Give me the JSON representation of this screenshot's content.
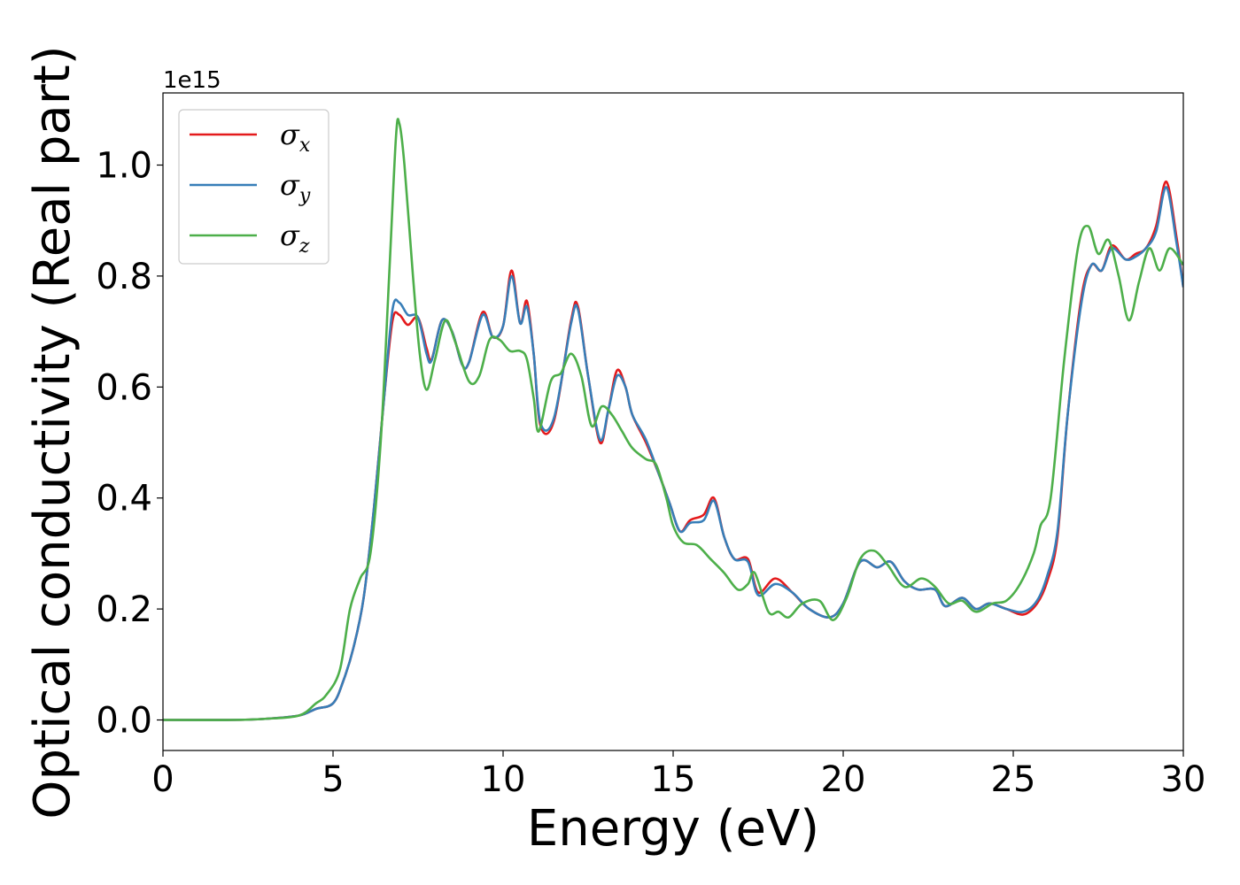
{
  "chart_data": {
    "type": "line",
    "xlabel": "Energy (eV)",
    "ylabel": "Optical conductivity (Real part)",
    "y_offset_text": "1e15",
    "xlim": [
      0,
      30
    ],
    "ylim": [
      -0.055,
      1.13
    ],
    "x_ticks": [
      0,
      5,
      10,
      15,
      20,
      25,
      30
    ],
    "x_tick_labels": [
      "0",
      "5",
      "10",
      "15",
      "20",
      "25",
      "30"
    ],
    "y_ticks": [
      0.0,
      0.2,
      0.4,
      0.6,
      0.8,
      1.0
    ],
    "y_tick_labels": [
      "0.0",
      "0.2",
      "0.4",
      "0.6",
      "0.8",
      "1.0"
    ],
    "grid": false,
    "legend_position": "top-left",
    "series": [
      {
        "name": "σ",
        "subscript": "x",
        "color": "#e41a1c",
        "points": [
          [
            0,
            0.0
          ],
          [
            2,
            0.0
          ],
          [
            3,
            0.002
          ],
          [
            4,
            0.008
          ],
          [
            4.5,
            0.02
          ],
          [
            5,
            0.03
          ],
          [
            5.3,
            0.07
          ],
          [
            5.6,
            0.13
          ],
          [
            5.9,
            0.22
          ],
          [
            6.2,
            0.38
          ],
          [
            6.5,
            0.58
          ],
          [
            6.75,
            0.72
          ],
          [
            6.95,
            0.73
          ],
          [
            7.2,
            0.712
          ],
          [
            7.5,
            0.725
          ],
          [
            7.75,
            0.67
          ],
          [
            7.9,
            0.65
          ],
          [
            8.2,
            0.72
          ],
          [
            8.5,
            0.7
          ],
          [
            8.8,
            0.64
          ],
          [
            9.0,
            0.645
          ],
          [
            9.4,
            0.735
          ],
          [
            9.7,
            0.69
          ],
          [
            10.0,
            0.71
          ],
          [
            10.25,
            0.81
          ],
          [
            10.5,
            0.715
          ],
          [
            10.7,
            0.755
          ],
          [
            10.9,
            0.66
          ],
          [
            11.1,
            0.53
          ],
          [
            11.5,
            0.54
          ],
          [
            12.0,
            0.72
          ],
          [
            12.2,
            0.745
          ],
          [
            12.5,
            0.62
          ],
          [
            12.85,
            0.5
          ],
          [
            13.1,
            0.56
          ],
          [
            13.35,
            0.63
          ],
          [
            13.6,
            0.6
          ],
          [
            13.8,
            0.55
          ],
          [
            14.2,
            0.5
          ],
          [
            14.6,
            0.44
          ],
          [
            14.9,
            0.39
          ],
          [
            15.2,
            0.34
          ],
          [
            15.5,
            0.36
          ],
          [
            15.9,
            0.37
          ],
          [
            16.2,
            0.4
          ],
          [
            16.5,
            0.33
          ],
          [
            16.8,
            0.29
          ],
          [
            17.2,
            0.29
          ],
          [
            17.5,
            0.23
          ],
          [
            18.0,
            0.255
          ],
          [
            18.5,
            0.23
          ],
          [
            19.0,
            0.2
          ],
          [
            19.6,
            0.185
          ],
          [
            20.0,
            0.21
          ],
          [
            20.5,
            0.285
          ],
          [
            21.0,
            0.275
          ],
          [
            21.4,
            0.285
          ],
          [
            21.8,
            0.25
          ],
          [
            22.2,
            0.235
          ],
          [
            22.7,
            0.235
          ],
          [
            23.0,
            0.205
          ],
          [
            23.5,
            0.22
          ],
          [
            23.9,
            0.2
          ],
          [
            24.3,
            0.21
          ],
          [
            24.8,
            0.2
          ],
          [
            25.3,
            0.19
          ],
          [
            25.7,
            0.21
          ],
          [
            26.0,
            0.25
          ],
          [
            26.3,
            0.33
          ],
          [
            26.6,
            0.55
          ],
          [
            27.0,
            0.76
          ],
          [
            27.3,
            0.82
          ],
          [
            27.6,
            0.81
          ],
          [
            27.9,
            0.855
          ],
          [
            28.3,
            0.83
          ],
          [
            28.6,
            0.84
          ],
          [
            28.9,
            0.85
          ],
          [
            29.2,
            0.89
          ],
          [
            29.5,
            0.97
          ],
          [
            29.8,
            0.87
          ],
          [
            30.0,
            0.78
          ]
        ]
      },
      {
        "name": "σ",
        "subscript": "y",
        "color": "#377eb8",
        "points": [
          [
            0,
            0.0
          ],
          [
            2,
            0.0
          ],
          [
            3,
            0.002
          ],
          [
            4,
            0.008
          ],
          [
            4.5,
            0.02
          ],
          [
            5,
            0.03
          ],
          [
            5.3,
            0.07
          ],
          [
            5.6,
            0.13
          ],
          [
            5.9,
            0.22
          ],
          [
            6.2,
            0.38
          ],
          [
            6.5,
            0.58
          ],
          [
            6.75,
            0.74
          ],
          [
            6.95,
            0.752
          ],
          [
            7.2,
            0.73
          ],
          [
            7.5,
            0.725
          ],
          [
            7.75,
            0.66
          ],
          [
            7.9,
            0.648
          ],
          [
            8.2,
            0.72
          ],
          [
            8.5,
            0.7
          ],
          [
            8.8,
            0.64
          ],
          [
            9.0,
            0.645
          ],
          [
            9.4,
            0.73
          ],
          [
            9.7,
            0.69
          ],
          [
            10.0,
            0.71
          ],
          [
            10.25,
            0.8
          ],
          [
            10.5,
            0.715
          ],
          [
            10.7,
            0.745
          ],
          [
            10.9,
            0.66
          ],
          [
            11.1,
            0.535
          ],
          [
            11.5,
            0.545
          ],
          [
            12.0,
            0.715
          ],
          [
            12.2,
            0.74
          ],
          [
            12.5,
            0.62
          ],
          [
            12.85,
            0.505
          ],
          [
            13.1,
            0.56
          ],
          [
            13.35,
            0.62
          ],
          [
            13.6,
            0.6
          ],
          [
            13.8,
            0.55
          ],
          [
            14.2,
            0.505
          ],
          [
            14.6,
            0.44
          ],
          [
            14.9,
            0.39
          ],
          [
            15.2,
            0.34
          ],
          [
            15.5,
            0.355
          ],
          [
            15.9,
            0.36
          ],
          [
            16.2,
            0.395
          ],
          [
            16.5,
            0.33
          ],
          [
            16.8,
            0.29
          ],
          [
            17.2,
            0.285
          ],
          [
            17.5,
            0.225
          ],
          [
            18.0,
            0.245
          ],
          [
            18.5,
            0.23
          ],
          [
            19.0,
            0.2
          ],
          [
            19.6,
            0.185
          ],
          [
            20.0,
            0.21
          ],
          [
            20.5,
            0.285
          ],
          [
            21.0,
            0.275
          ],
          [
            21.4,
            0.285
          ],
          [
            21.8,
            0.25
          ],
          [
            22.2,
            0.235
          ],
          [
            22.7,
            0.235
          ],
          [
            23.0,
            0.205
          ],
          [
            23.5,
            0.22
          ],
          [
            23.9,
            0.2
          ],
          [
            24.3,
            0.21
          ],
          [
            24.8,
            0.2
          ],
          [
            25.3,
            0.195
          ],
          [
            25.7,
            0.215
          ],
          [
            26.0,
            0.26
          ],
          [
            26.3,
            0.34
          ],
          [
            26.6,
            0.55
          ],
          [
            27.0,
            0.75
          ],
          [
            27.3,
            0.82
          ],
          [
            27.6,
            0.81
          ],
          [
            27.9,
            0.85
          ],
          [
            28.3,
            0.83
          ],
          [
            28.6,
            0.835
          ],
          [
            28.9,
            0.85
          ],
          [
            29.2,
            0.88
          ],
          [
            29.5,
            0.96
          ],
          [
            29.8,
            0.86
          ],
          [
            30.0,
            0.78
          ]
        ]
      },
      {
        "name": "σ",
        "subscript": "z",
        "color": "#4daf4a",
        "points": [
          [
            0,
            0.0
          ],
          [
            2,
            0.0
          ],
          [
            3,
            0.002
          ],
          [
            4,
            0.008
          ],
          [
            4.5,
            0.03
          ],
          [
            4.8,
            0.045
          ],
          [
            5.2,
            0.09
          ],
          [
            5.5,
            0.2
          ],
          [
            5.8,
            0.255
          ],
          [
            6.1,
            0.3
          ],
          [
            6.4,
            0.5
          ],
          [
            6.65,
            0.8
          ],
          [
            6.85,
            1.05
          ],
          [
            6.95,
            1.075
          ],
          [
            7.1,
            1.0
          ],
          [
            7.35,
            0.8
          ],
          [
            7.55,
            0.66
          ],
          [
            7.75,
            0.595
          ],
          [
            8.0,
            0.65
          ],
          [
            8.3,
            0.72
          ],
          [
            8.6,
            0.68
          ],
          [
            9.0,
            0.61
          ],
          [
            9.3,
            0.62
          ],
          [
            9.6,
            0.685
          ],
          [
            9.9,
            0.685
          ],
          [
            10.2,
            0.665
          ],
          [
            10.5,
            0.665
          ],
          [
            10.7,
            0.65
          ],
          [
            10.9,
            0.58
          ],
          [
            11.05,
            0.52
          ],
          [
            11.4,
            0.61
          ],
          [
            11.7,
            0.625
          ],
          [
            12.0,
            0.66
          ],
          [
            12.3,
            0.62
          ],
          [
            12.6,
            0.53
          ],
          [
            12.9,
            0.565
          ],
          [
            13.2,
            0.55
          ],
          [
            13.5,
            0.52
          ],
          [
            13.8,
            0.49
          ],
          [
            14.2,
            0.47
          ],
          [
            14.5,
            0.46
          ],
          [
            14.8,
            0.4
          ],
          [
            15.0,
            0.35
          ],
          [
            15.3,
            0.32
          ],
          [
            15.7,
            0.315
          ],
          [
            16.1,
            0.29
          ],
          [
            16.5,
            0.265
          ],
          [
            16.9,
            0.235
          ],
          [
            17.2,
            0.245
          ],
          [
            17.4,
            0.265
          ],
          [
            17.8,
            0.195
          ],
          [
            18.1,
            0.195
          ],
          [
            18.4,
            0.185
          ],
          [
            18.8,
            0.21
          ],
          [
            19.3,
            0.215
          ],
          [
            19.7,
            0.18
          ],
          [
            20.1,
            0.22
          ],
          [
            20.5,
            0.29
          ],
          [
            20.9,
            0.305
          ],
          [
            21.3,
            0.28
          ],
          [
            21.8,
            0.24
          ],
          [
            22.3,
            0.255
          ],
          [
            22.7,
            0.24
          ],
          [
            23.1,
            0.21
          ],
          [
            23.5,
            0.215
          ],
          [
            23.9,
            0.195
          ],
          [
            24.4,
            0.21
          ],
          [
            24.8,
            0.215
          ],
          [
            25.2,
            0.245
          ],
          [
            25.6,
            0.3
          ],
          [
            25.8,
            0.35
          ],
          [
            26.1,
            0.4
          ],
          [
            26.5,
            0.65
          ],
          [
            26.9,
            0.85
          ],
          [
            27.2,
            0.89
          ],
          [
            27.5,
            0.84
          ],
          [
            27.8,
            0.865
          ],
          [
            28.1,
            0.8
          ],
          [
            28.4,
            0.72
          ],
          [
            28.7,
            0.79
          ],
          [
            29.0,
            0.85
          ],
          [
            29.3,
            0.81
          ],
          [
            29.6,
            0.85
          ],
          [
            30.0,
            0.82
          ]
        ]
      }
    ]
  }
}
